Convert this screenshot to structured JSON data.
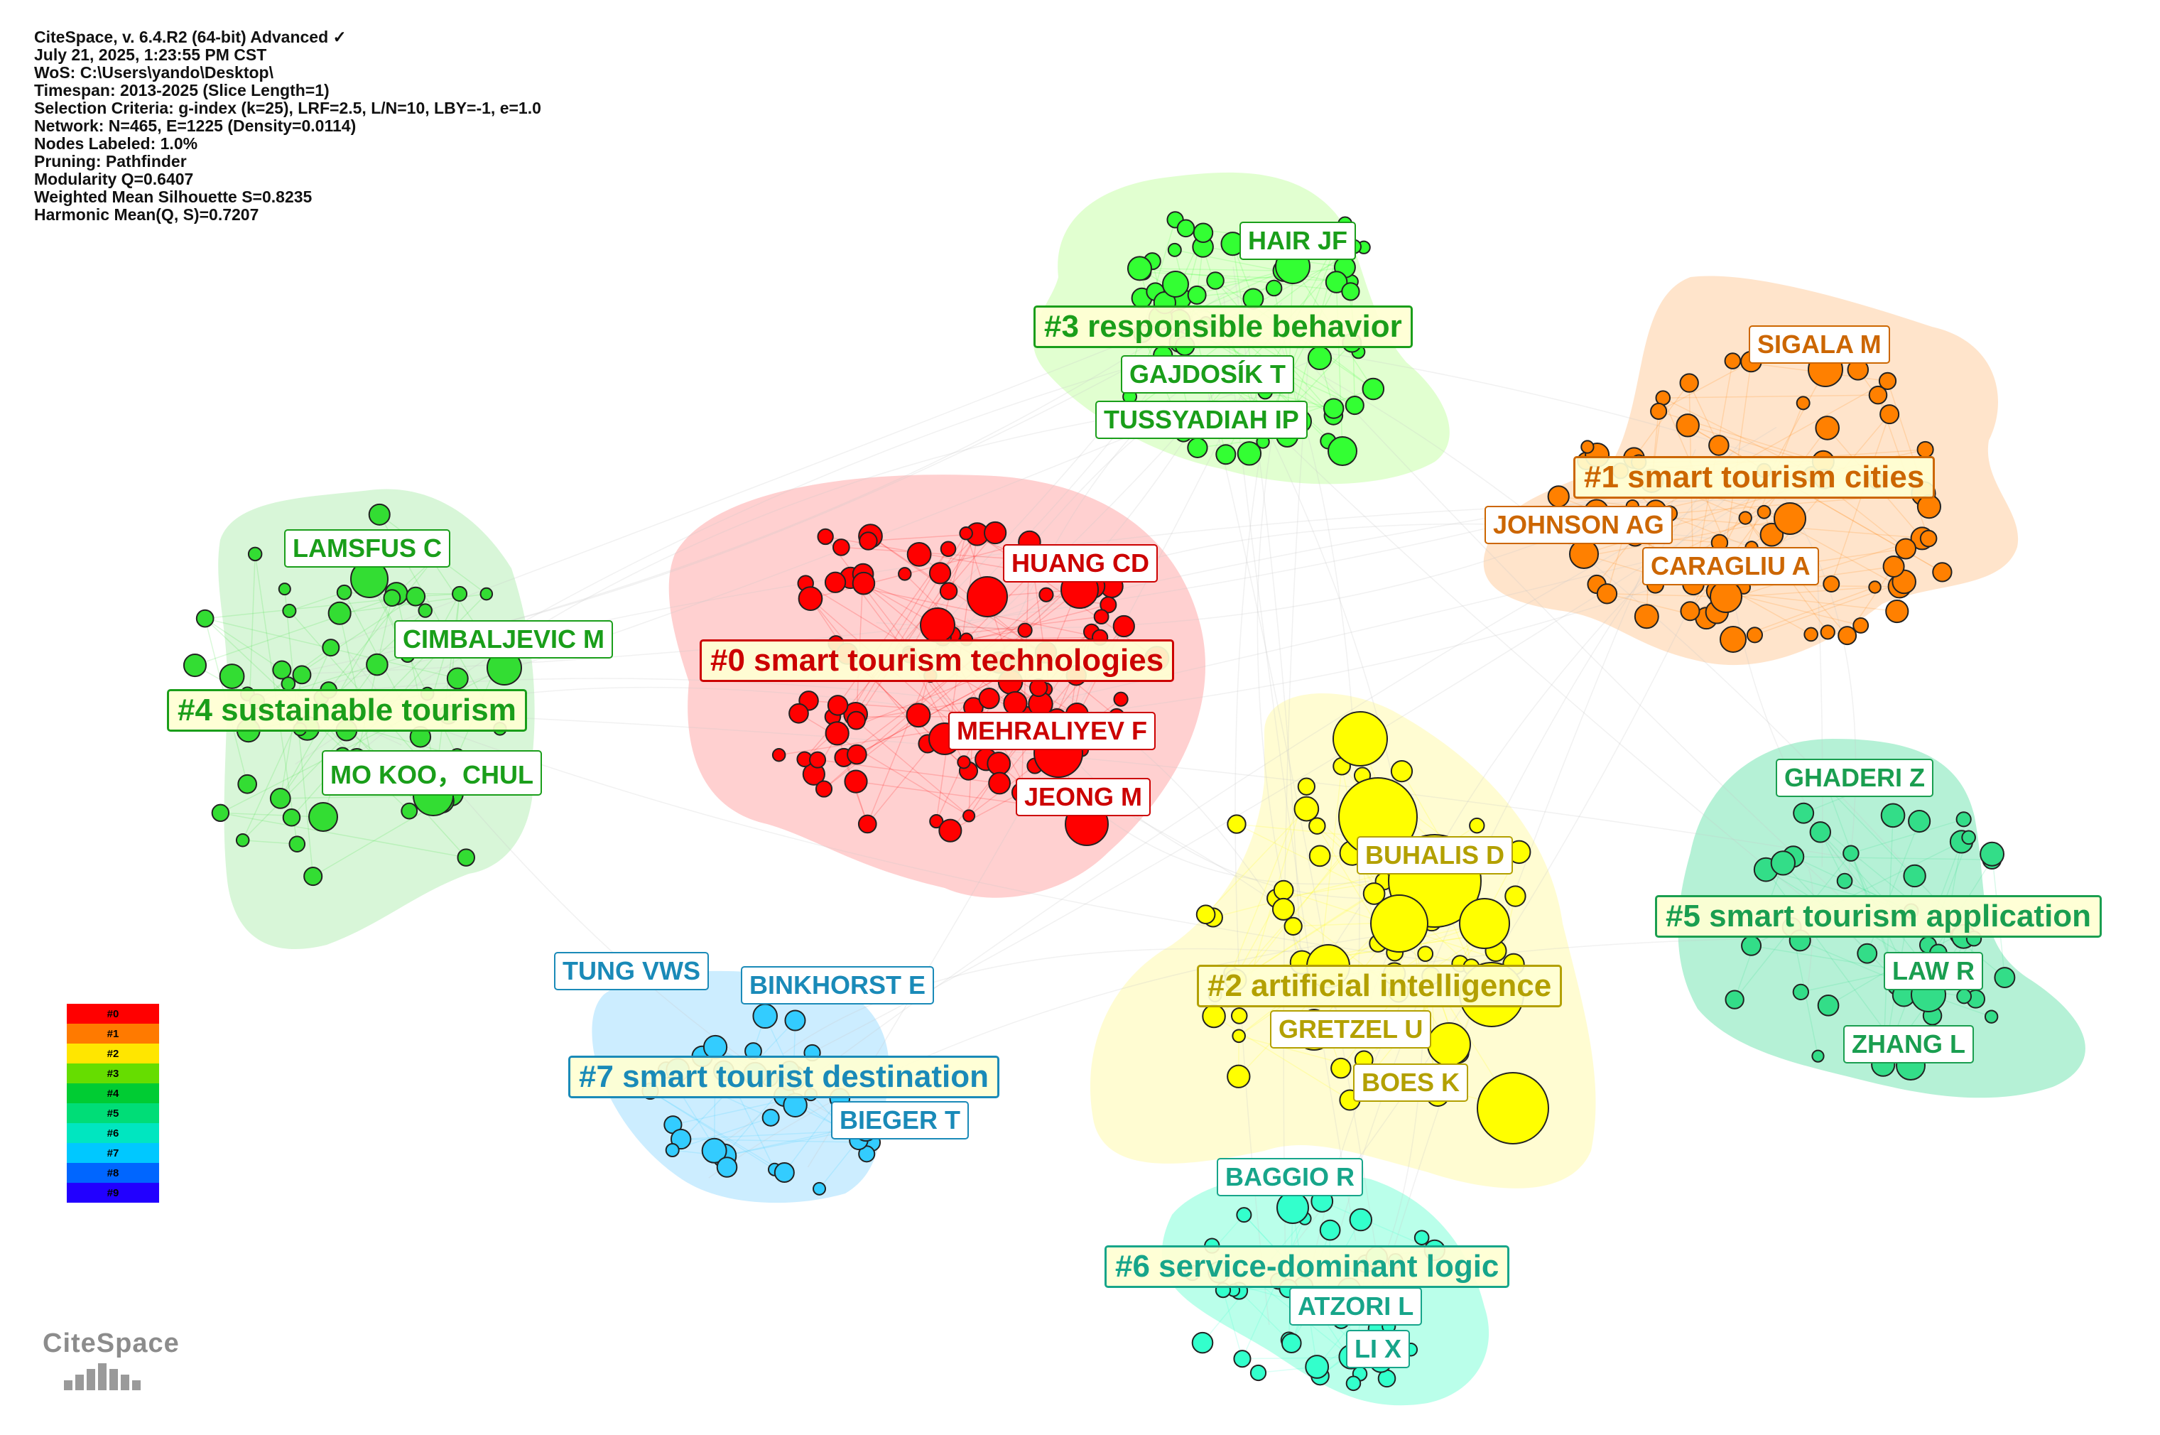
{
  "info": {
    "lines": [
      "CiteSpace, v. 6.4.R2 (64-bit) Advanced ✓",
      "July 21, 2025, 1:23:55 PM CST",
      "WoS: C:\\Users\\yando\\Desktop\\",
      "Timespan: 2013-2025 (Slice Length=1)",
      "Selection Criteria: g-index (k=25), LRF=2.5, L/N=10, LBY=-1, e=1.0",
      "Network: N=465, E=1225 (Density=0.0114)",
      "Nodes Labeled: 1.0%",
      "Pruning: Pathfinder",
      "Modularity Q=0.6407",
      "Weighted Mean Silhouette S=0.8235",
      "Harmonic Mean(Q, S)=0.7207"
    ]
  },
  "clusters": [
    {
      "id": "#0",
      "label": "#0 smart tourism technologies",
      "color": "#ff0000",
      "text_color": "#cc0000"
    },
    {
      "id": "#1",
      "label": "#1 smart tourism cities",
      "color": "#ff8000",
      "text_color": "#cc6600"
    },
    {
      "id": "#2",
      "label": "#2 artificial intelligence",
      "color": "#ffff00",
      "text_color": "#b3a000"
    },
    {
      "id": "#3",
      "label": "#3 responsible behavior",
      "color": "#33ff33",
      "text_color": "#1a9e1a"
    },
    {
      "id": "#4",
      "label": "#4 sustainable tourism",
      "color": "#33dd33",
      "text_color": "#1a9e1a"
    },
    {
      "id": "#5",
      "label": "#5 smart tourism application",
      "color": "#33dd88",
      "text_color": "#1a9e50"
    },
    {
      "id": "#6",
      "label": "#6 service-dominant logic",
      "color": "#33ffcc",
      "text_color": "#17a58a"
    },
    {
      "id": "#7",
      "label": "#7 smart tourist destination",
      "color": "#33ccff",
      "text_color": "#1a8ab8"
    }
  ],
  "authors": [
    {
      "name": "HAIR JF",
      "cluster": "#3"
    },
    {
      "name": "GAJDOSÍK T",
      "cluster": "#3"
    },
    {
      "name": "TUSSYADIAH IP",
      "cluster": "#3"
    },
    {
      "name": "SIGALA M",
      "cluster": "#1"
    },
    {
      "name": "JOHNSON AG",
      "cluster": "#1"
    },
    {
      "name": "CARAGLIU A",
      "cluster": "#1"
    },
    {
      "name": "HUANG CD",
      "cluster": "#0"
    },
    {
      "name": "MEHRALIYEV F",
      "cluster": "#0"
    },
    {
      "name": "JEONG M",
      "cluster": "#0"
    },
    {
      "name": "LAMSFUS C",
      "cluster": "#4"
    },
    {
      "name": "CIMBALJEVIC M",
      "cluster": "#4"
    },
    {
      "name": "MO KOO，CHUL",
      "cluster": "#4"
    },
    {
      "name": "BUHALIS D",
      "cluster": "#2"
    },
    {
      "name": "GRETZEL U",
      "cluster": "#2"
    },
    {
      "name": "BOES K",
      "cluster": "#2"
    },
    {
      "name": "GHADERI Z",
      "cluster": "#5"
    },
    {
      "name": "LAW R",
      "cluster": "#5"
    },
    {
      "name": "ZHANG L",
      "cluster": "#5"
    },
    {
      "name": "TUNG VWS",
      "cluster": "#7"
    },
    {
      "name": "BINKHORST E",
      "cluster": "#7"
    },
    {
      "name": "BIEGER T",
      "cluster": "#7"
    },
    {
      "name": "BAGGIO R",
      "cluster": "#6"
    },
    {
      "name": "ATZORI L",
      "cluster": "#6"
    },
    {
      "name": "LI X",
      "cluster": "#6"
    }
  ],
  "legend": {
    "items": [
      {
        "label": "#0",
        "color": "#ff0000"
      },
      {
        "label": "#1",
        "color": "#ff7a00"
      },
      {
        "label": "#2",
        "color": "#ffe600"
      },
      {
        "label": "#3",
        "color": "#66dd00"
      },
      {
        "label": "#4",
        "color": "#00cc33"
      },
      {
        "label": "#5",
        "color": "#00dd77"
      },
      {
        "label": "#6",
        "color": "#00e6c0"
      },
      {
        "label": "#7",
        "color": "#00c8ff"
      },
      {
        "label": "#8",
        "color": "#0066ff"
      },
      {
        "label": "#9",
        "color": "#2200ff"
      }
    ]
  },
  "logo": {
    "text": "CiteSpace"
  }
}
